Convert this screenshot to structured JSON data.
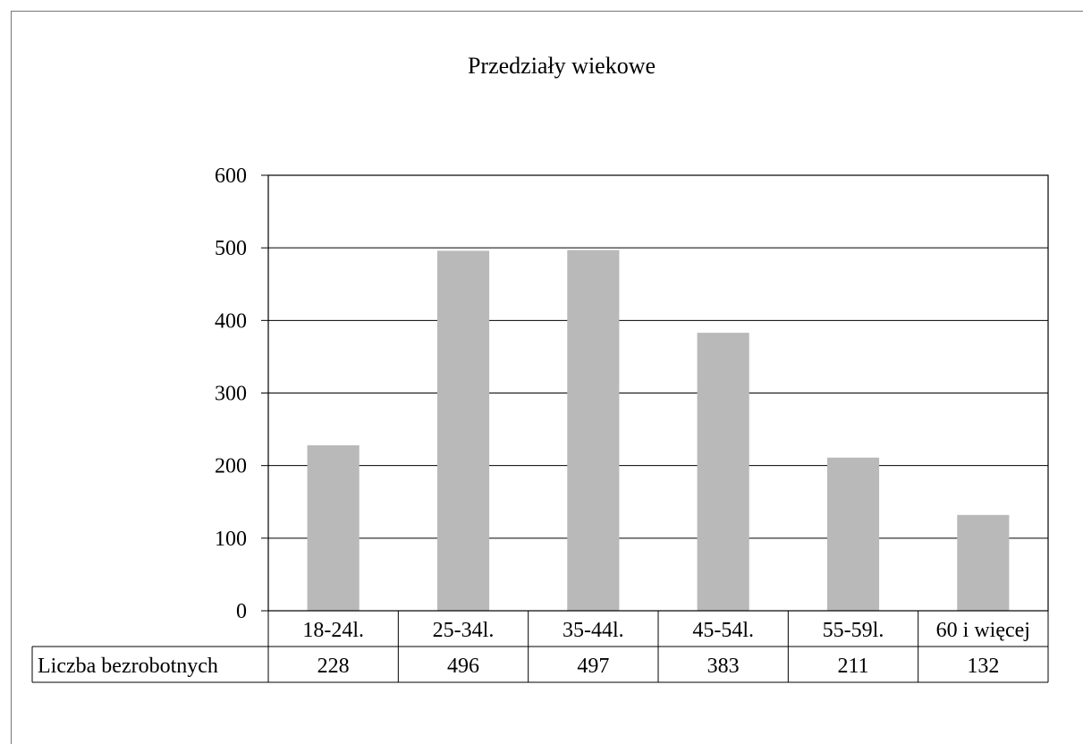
{
  "chart_data": {
    "type": "bar",
    "title": "Przedziały wiekowe",
    "categories": [
      "18-24l.",
      "25-34l.",
      "35-44l.",
      "45-54l.",
      "55-59l.",
      "60 i więcej"
    ],
    "series": [
      {
        "name": "Liczba bezrobotnych",
        "values": [
          228,
          496,
          497,
          383,
          211,
          132
        ]
      }
    ],
    "ylim": [
      0,
      600
    ],
    "yticks": [
      "0",
      "100",
      "200",
      "300",
      "400",
      "500",
      "600"
    ],
    "grid": true,
    "legend": "data table below chart",
    "colors": {
      "bar": "#b9b9b9",
      "grid": "#000000",
      "border": "#000000"
    }
  }
}
